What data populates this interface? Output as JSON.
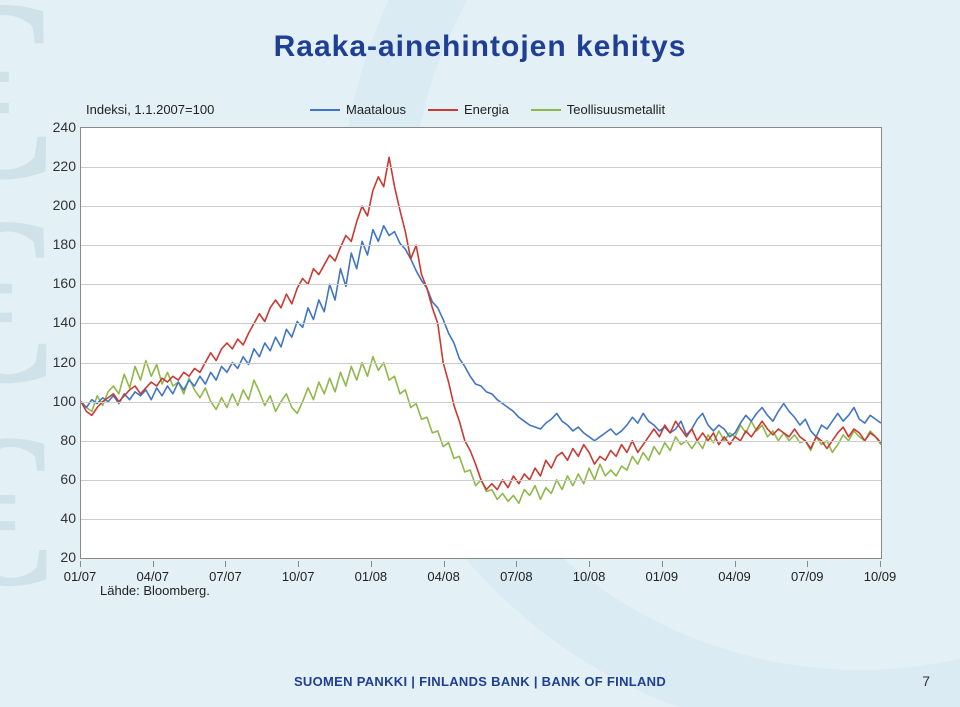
{
  "title": "Raaka-ainehintojen kehitys",
  "index_note": "Indeksi, 1.1.2007=100",
  "source_note": "Lähde: Bloomberg.",
  "footer": "SUOMEN PANKKI | FINLANDS BANK | BANK OF FINLAND",
  "page_number": "7",
  "chart": {
    "type": "line",
    "background_color": "#ffffff",
    "grid_color": "#cccccc",
    "axis_color": "#888888",
    "label_fontsize": 13,
    "ylim": [
      20,
      240
    ],
    "ytick_step": 20,
    "y_ticks": [
      240,
      220,
      200,
      180,
      160,
      140,
      120,
      100,
      80,
      60,
      40,
      20
    ],
    "x_labels": [
      "01/07",
      "04/07",
      "07/07",
      "10/07",
      "01/08",
      "04/08",
      "07/08",
      "10/08",
      "01/09",
      "04/09",
      "07/09",
      "10/09"
    ],
    "legend": [
      {
        "label": "Maatalous",
        "color": "#4175c4"
      },
      {
        "label": "Energia",
        "color": "#c93a32"
      },
      {
        "label": "Teollisuusmetallit",
        "color": "#8fb84a"
      }
    ],
    "series": {
      "maatalous": {
        "color": "#4175c4",
        "line_width": 1.6,
        "data": [
          100,
          97,
          101,
          99,
          102,
          100,
          103,
          99,
          104,
          101,
          105,
          103,
          106,
          101,
          107,
          103,
          108,
          104,
          110,
          106,
          111,
          108,
          113,
          109,
          115,
          111,
          118,
          115,
          120,
          117,
          123,
          119,
          127,
          123,
          130,
          126,
          133,
          128,
          137,
          133,
          141,
          138,
          148,
          142,
          152,
          146,
          160,
          152,
          168,
          159,
          176,
          168,
          182,
          175,
          188,
          182,
          190,
          185,
          187,
          181,
          178,
          173,
          167,
          162,
          158,
          151,
          148,
          142,
          135,
          130,
          122,
          118,
          113,
          109,
          108,
          105,
          104,
          101,
          99,
          97,
          95,
          92,
          90,
          88,
          87,
          86,
          89,
          91,
          94,
          90,
          88,
          85,
          87,
          84,
          82,
          80,
          82,
          84,
          86,
          83,
          85,
          88,
          92,
          89,
          94,
          90,
          88,
          85,
          87,
          84,
          86,
          90,
          83,
          86,
          91,
          94,
          88,
          85,
          88,
          86,
          82,
          84,
          89,
          93,
          90,
          94,
          97,
          93,
          90,
          95,
          99,
          95,
          92,
          88,
          91,
          85,
          82,
          88,
          86,
          90,
          94,
          90,
          93,
          97,
          91,
          89,
          93,
          91,
          89
        ]
      },
      "energia": {
        "color": "#c93a32",
        "line_width": 1.6,
        "data": [
          100,
          95,
          93,
          97,
          100,
          102,
          104,
          100,
          103,
          106,
          108,
          104,
          107,
          110,
          108,
          112,
          110,
          113,
          111,
          115,
          113,
          117,
          115,
          120,
          125,
          121,
          127,
          130,
          127,
          132,
          129,
          135,
          140,
          145,
          141,
          148,
          152,
          148,
          155,
          150,
          158,
          163,
          160,
          168,
          165,
          170,
          175,
          172,
          179,
          185,
          182,
          192,
          200,
          195,
          208,
          215,
          210,
          225,
          210,
          198,
          187,
          173,
          180,
          165,
          158,
          148,
          140,
          120,
          110,
          98,
          90,
          80,
          75,
          68,
          60,
          55,
          58,
          55,
          60,
          56,
          62,
          58,
          63,
          60,
          66,
          62,
          70,
          66,
          72,
          74,
          70,
          76,
          72,
          78,
          74,
          68,
          72,
          70,
          75,
          72,
          78,
          74,
          80,
          74,
          78,
          82,
          86,
          82,
          88,
          84,
          90,
          86,
          82,
          86,
          80,
          84,
          80,
          84,
          78,
          82,
          78,
          82,
          80,
          85,
          82,
          86,
          90,
          86,
          83,
          86,
          84,
          82,
          86,
          82,
          80,
          76,
          82,
          80,
          76,
          80,
          84,
          87,
          82,
          86,
          84,
          80,
          84,
          82,
          79
        ]
      },
      "teollisuusmetallit": {
        "color": "#8fb84a",
        "line_width": 1.6,
        "data": [
          100,
          97,
          95,
          103,
          98,
          105,
          108,
          104,
          114,
          107,
          118,
          111,
          121,
          113,
          119,
          109,
          115,
          108,
          110,
          104,
          112,
          106,
          102,
          107,
          100,
          96,
          102,
          97,
          104,
          98,
          106,
          101,
          111,
          105,
          98,
          103,
          95,
          100,
          104,
          97,
          94,
          100,
          107,
          101,
          110,
          104,
          112,
          105,
          115,
          108,
          118,
          111,
          120,
          113,
          123,
          116,
          120,
          111,
          113,
          104,
          106,
          97,
          99,
          91,
          92,
          84,
          85,
          77,
          79,
          71,
          72,
          64,
          65,
          57,
          60,
          54,
          55,
          50,
          53,
          49,
          52,
          48,
          55,
          52,
          57,
          50,
          56,
          53,
          60,
          55,
          62,
          57,
          63,
          58,
          66,
          60,
          68,
          62,
          65,
          62,
          67,
          65,
          72,
          68,
          74,
          70,
          77,
          73,
          79,
          75,
          82,
          78,
          80,
          76,
          80,
          76,
          83,
          79,
          85,
          80,
          84,
          82,
          88,
          84,
          90,
          85,
          88,
          82,
          85,
          80,
          84,
          80,
          83,
          79,
          80,
          75,
          82,
          78,
          80,
          74,
          78,
          83,
          80,
          85,
          82,
          80,
          85,
          82,
          78
        ]
      }
    }
  },
  "slide_background": "#e3f0f6",
  "title_color": "#1f3f94"
}
